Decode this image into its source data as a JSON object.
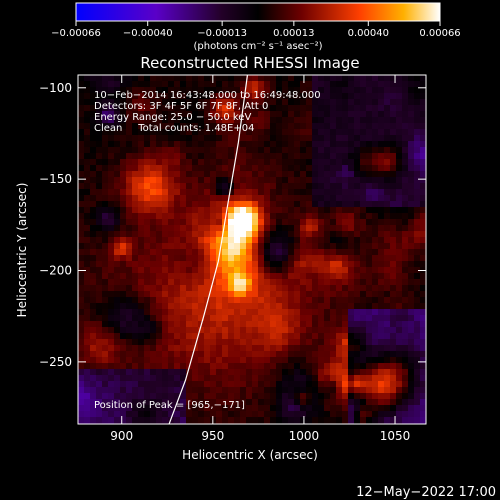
{
  "chart_data": {
    "type": "heatmap",
    "title": "Reconstructed RHESSI Image",
    "xlabel": "Heliocentric X (arcsec)",
    "ylabel": "Heliocentric Y (arcsec)",
    "xlim": [
      876,
      1067
    ],
    "ylim": [
      -284,
      -93
    ],
    "x_ticks": [
      900,
      950,
      1000,
      1050
    ],
    "y_ticks": [
      -100,
      -150,
      -200,
      -250
    ],
    "colorbar": {
      "colormap": "red-temperature",
      "range": [
        -0.00066,
        0.00066
      ],
      "tick_values": [
        -0.00066,
        -0.0004,
        -0.00013,
        0.00013,
        0.0004,
        0.00066
      ],
      "tick_labels": [
        "−0.00066",
        "−0.00040",
        "−0.00013",
        "0.00013",
        "0.00040",
        "0.00066"
      ],
      "units": "(photons cm⁻² s⁻¹ asec⁻²)"
    },
    "annotations": [
      "10−Feb−2014 16:43:48.000 to 16:49:48.000",
      "Detectors: 3F 4F 5F 6F 7F 8F, Att 0",
      "Energy Range: 25.0 − 50.0 keV",
      "Clean     Total counts: 1.48E+04"
    ],
    "peak_label": "Position of Peak = [965,−171]",
    "peak": [
      965,
      -171
    ],
    "limb_curve": [
      [
        926,
        -284
      ],
      [
        935,
        -260
      ],
      [
        945,
        -225
      ],
      [
        953,
        -195
      ],
      [
        958,
        -165
      ],
      [
        964,
        -130
      ],
      [
        969,
        -93
      ]
    ],
    "footer_timestamp": "12−May−2022 17:00"
  }
}
